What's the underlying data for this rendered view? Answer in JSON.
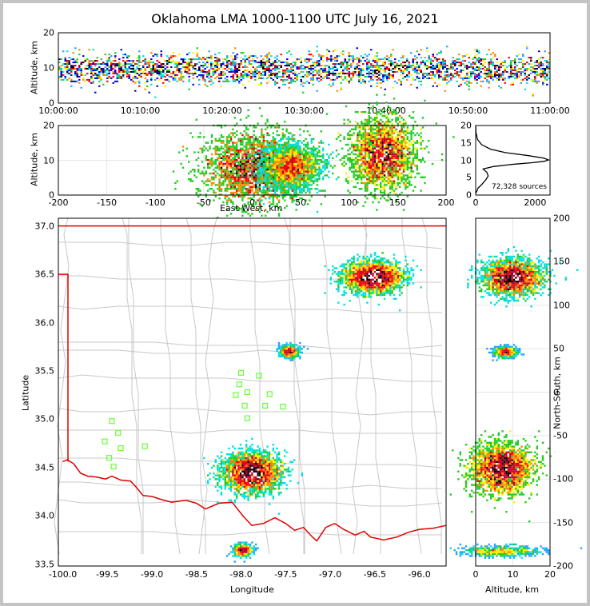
{
  "title": "Oklahoma LMA 1000-1100 UTC July 16, 2021",
  "colors": {
    "density": [
      "#0000cc",
      "#2aa0ff",
      "#00e0e0",
      "#22cc22",
      "#ffee00",
      "#ff8800",
      "#ff0000",
      "#bb0033",
      "#000000",
      "#ffffff"
    ],
    "state_border": "#e00000",
    "counties": "#c8c8c8",
    "stations": "#66ff33",
    "altitude_profile": "#000000"
  },
  "chart_data": [
    {
      "id": "time-height",
      "type": "heatmap",
      "xlabel": "",
      "ylabel": "Altitude, km",
      "xlim": [
        "10:00:00",
        "11:00:00"
      ],
      "ylim": [
        0,
        20
      ],
      "xticks": [
        "10:00:00",
        "10:10:00",
        "10:20:00",
        "10:30:00",
        "10:40:00",
        "10:50:00",
        "11:00:00"
      ],
      "yticks": [
        "0",
        "10",
        "20"
      ],
      "source_layer_km": [
        1,
        16
      ],
      "core_layer_km": [
        6,
        13
      ]
    },
    {
      "id": "east-west-altitude",
      "type": "heatmap",
      "xlabel": "East-West, km",
      "ylabel": "Altitude, km",
      "xlim": [
        -200,
        200
      ],
      "ylim": [
        0,
        20
      ],
      "xticks": [
        "-200",
        "-150",
        "-100",
        "-50",
        "0",
        "50",
        "100",
        "150",
        "200"
      ],
      "yticks": [
        "0",
        "10",
        "20"
      ],
      "clusters": [
        {
          "x": 5,
          "z": 8,
          "sx": 28,
          "sz": 5,
          "intensity": 1.0
        },
        {
          "x": 40,
          "z": 8,
          "sx": 14,
          "sz": 3,
          "intensity": 0.8
        },
        {
          "x": 135,
          "z": 12,
          "sx": 17,
          "sz": 5,
          "intensity": 1.0
        }
      ]
    },
    {
      "id": "altitude-histogram",
      "type": "line",
      "xlim": [
        0,
        2500
      ],
      "ylim": [
        0,
        20
      ],
      "xticks": [
        "0",
        "2000"
      ],
      "yticks": [
        "0",
        "5",
        "10",
        "15",
        "20"
      ],
      "x": [
        0,
        30,
        80,
        200,
        350,
        420,
        380,
        250,
        600,
        1200,
        1900,
        2300,
        2450,
        2300,
        1800,
        1000,
        500,
        200,
        60,
        10,
        0
      ],
      "y": [
        0.5,
        1,
        2,
        3,
        4.5,
        5.5,
        6.5,
        7.5,
        8.2,
        8.8,
        9.3,
        9.7,
        10.1,
        10.6,
        11.3,
        12.2,
        13.2,
        14.5,
        16,
        18,
        20
      ],
      "note": "72,328 sources"
    },
    {
      "id": "plan-view",
      "type": "heatmap",
      "xlabel": "Longitude",
      "ylabel": "Latitude",
      "xlim": [
        -100.05,
        -95.7
      ],
      "ylim": [
        33.48,
        37.08
      ],
      "xticks": [
        "-100.0",
        "-99.5",
        "-99.0",
        "-98.5",
        "-98.0",
        "-97.5",
        "-97.0",
        "-96.5",
        "-96.0"
      ],
      "yticks": [
        "33.5",
        "34.0",
        "34.5",
        "35.0",
        "35.5",
        "36.0",
        "36.5",
        "37.0"
      ],
      "clusters": [
        {
          "lon": -96.52,
          "lat": 36.47,
          "slon": 0.16,
          "slat": 0.08,
          "intensity": 1.0
        },
        {
          "lon": -97.46,
          "lat": 35.7,
          "slon": 0.05,
          "slat": 0.03,
          "intensity": 0.8
        },
        {
          "lon": -97.88,
          "lat": 34.45,
          "slon": 0.16,
          "slat": 0.1,
          "intensity": 1.0
        },
        {
          "lon": -97.98,
          "lat": 33.64,
          "slon": 0.05,
          "slat": 0.03,
          "intensity": 0.8
        }
      ],
      "stations": [
        {
          "lon": -98.0,
          "lat": 35.48
        },
        {
          "lon": -97.8,
          "lat": 35.45
        },
        {
          "lon": -98.02,
          "lat": 35.36
        },
        {
          "lon": -97.93,
          "lat": 35.28
        },
        {
          "lon": -98.06,
          "lat": 35.25
        },
        {
          "lon": -97.68,
          "lat": 35.26
        },
        {
          "lon": -97.96,
          "lat": 35.14
        },
        {
          "lon": -97.73,
          "lat": 35.14
        },
        {
          "lon": -97.53,
          "lat": 35.13
        },
        {
          "lon": -97.93,
          "lat": 35.01
        },
        {
          "lon": -99.45,
          "lat": 34.98
        },
        {
          "lon": -99.38,
          "lat": 34.86
        },
        {
          "lon": -99.53,
          "lat": 34.77
        },
        {
          "lon": -99.35,
          "lat": 34.7
        },
        {
          "lon": -99.08,
          "lat": 34.72
        },
        {
          "lon": -99.48,
          "lat": 34.6
        },
        {
          "lon": -99.43,
          "lat": 34.51
        }
      ]
    },
    {
      "id": "altitude-north-south",
      "type": "heatmap",
      "xlabel": "Altitude, km",
      "ylabel": "North-South, km",
      "xlim": [
        0,
        20
      ],
      "ylim": [
        -200,
        200
      ],
      "xticks": [
        "0",
        "10",
        "20"
      ],
      "yticks": [
        "-200",
        "-150",
        "-100",
        "-50",
        "0",
        "50",
        "100",
        "150",
        "200"
      ],
      "clusters": [
        {
          "z": 10,
          "y": 132,
          "sz": 4,
          "sy": 10,
          "intensity": 1.0
        },
        {
          "z": 8,
          "y": 46,
          "sz": 1.5,
          "sy": 3,
          "intensity": 0.8
        },
        {
          "z": 7,
          "y": -88,
          "sz": 4,
          "sy": 14,
          "intensity": 1.0
        },
        {
          "z": 7,
          "y": -183,
          "sz": 5,
          "sy": 3,
          "intensity": 0.6
        }
      ]
    }
  ]
}
